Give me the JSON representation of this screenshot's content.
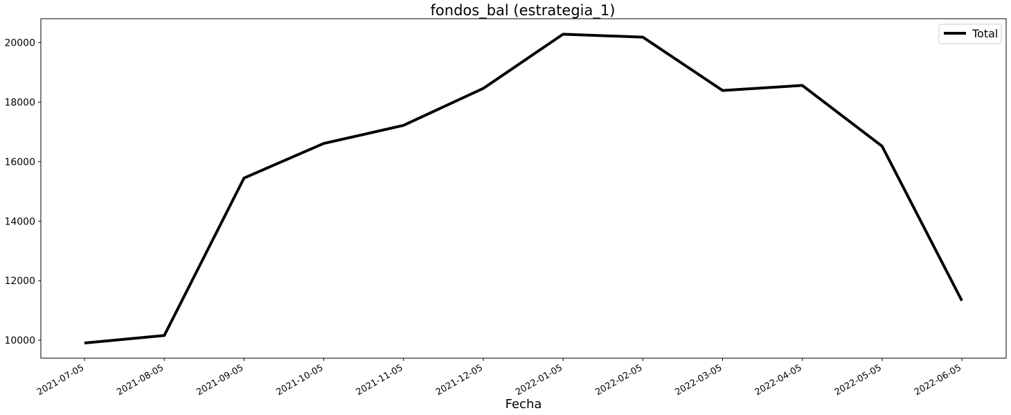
{
  "chart_data": {
    "type": "line",
    "title": "fondos_bal (estrategia_1)",
    "xlabel": "Fecha",
    "ylabel": "",
    "x": [
      "2021-07-05",
      "2021-08-05",
      "2021-09-05",
      "2021-10-05",
      "2021-11-05",
      "2021-12-05",
      "2022-01-05",
      "2022-02-05",
      "2022-03-05",
      "2022-04-05",
      "2022-05-05",
      "2022-06-05"
    ],
    "series": [
      {
        "name": "Total",
        "color": "#000000",
        "values": [
          9910,
          10160,
          15450,
          16610,
          17220,
          18460,
          20280,
          20180,
          18390,
          18560,
          16520,
          11330
        ]
      }
    ],
    "xticks": [
      "2021-07-05",
      "2021-08-05",
      "2021-09-05",
      "2021-10-05",
      "2021-11-05",
      "2021-12-05",
      "2022-01-05",
      "2022-02-05",
      "2022-03-05",
      "2022-04-05",
      "2022-05-05",
      "2022-06-05"
    ],
    "yticks": [
      10000,
      12000,
      14000,
      16000,
      18000,
      20000
    ],
    "ylim": [
      9400,
      20800
    ],
    "grid": false,
    "legend_position": "top-right"
  }
}
